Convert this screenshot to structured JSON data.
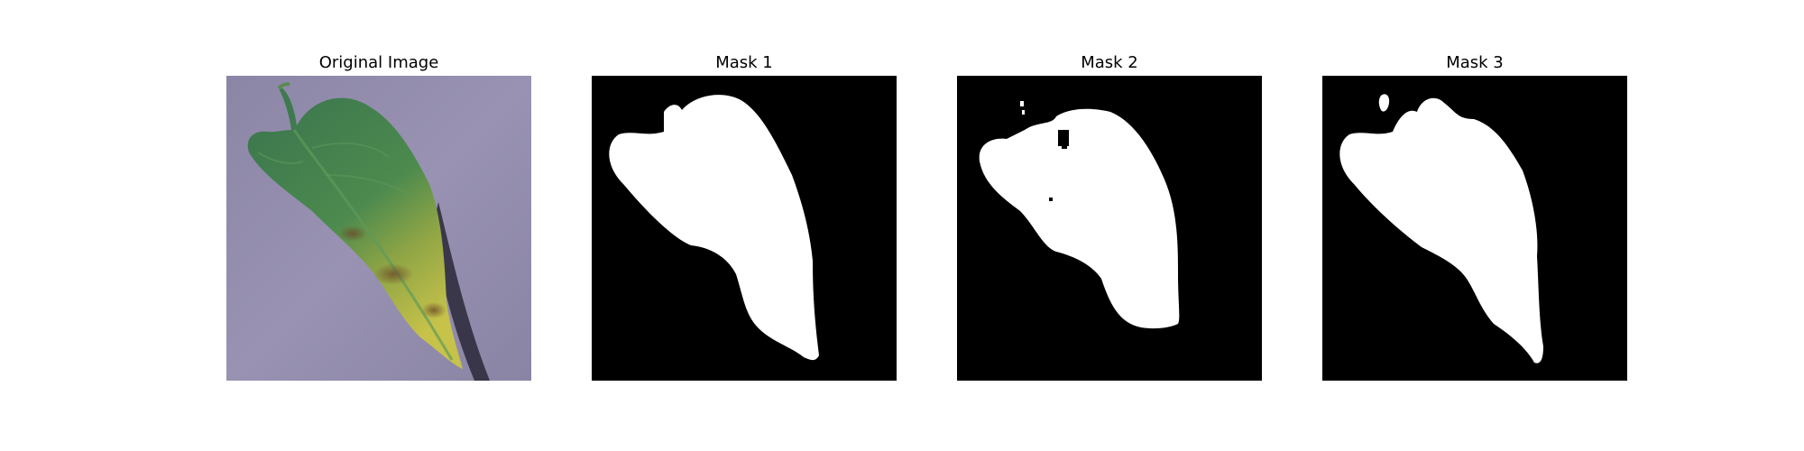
{
  "figure": {
    "panels": [
      {
        "title": "Original Image"
      },
      {
        "title": "Mask 1"
      },
      {
        "title": "Mask 2"
      },
      {
        "title": "Mask 3"
      }
    ]
  },
  "colors": {
    "background_surface": "#8f88a8",
    "leaf_green": "#3f7a4c",
    "leaf_yellow": "#b9b646",
    "mask_background": "#000000",
    "mask_foreground": "#ffffff"
  }
}
